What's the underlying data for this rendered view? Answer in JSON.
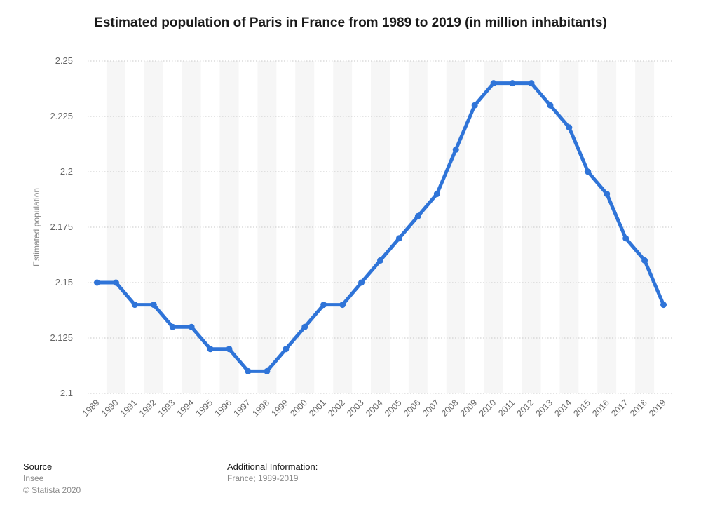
{
  "chart_data": {
    "type": "line",
    "title": "Estimated population of Paris in France from 1989 to 2019 (in million inhabitants)",
    "ylabel": "Estimated population",
    "xlabel": "",
    "ylim": [
      2.1,
      2.25
    ],
    "yticks": [
      "2.1",
      "2.125",
      "2.15",
      "2.175",
      "2.2",
      "2.225",
      "2.25"
    ],
    "grid": "horizontal dotted",
    "categories": [
      "1989",
      "1990",
      "1991",
      "1992",
      "1993",
      "1994",
      "1995",
      "1996",
      "1997",
      "1998",
      "1999",
      "2000",
      "2001",
      "2002",
      "2003",
      "2004",
      "2005",
      "2006",
      "2007",
      "2008",
      "2009",
      "2010",
      "2011",
      "2012",
      "2013",
      "2014",
      "2015",
      "2016",
      "2017",
      "2018",
      "2019"
    ],
    "series": [
      {
        "values": [
          2.15,
          2.15,
          2.14,
          2.14,
          2.13,
          2.13,
          2.12,
          2.12,
          2.11,
          2.11,
          2.12,
          2.13,
          2.14,
          2.14,
          2.15,
          2.16,
          2.17,
          2.18,
          2.19,
          2.21,
          2.23,
          2.24,
          2.24,
          2.24,
          2.23,
          2.22,
          2.2,
          2.19,
          2.17,
          2.16,
          2.14
        ],
        "color": "#2f74d8"
      }
    ]
  },
  "footer": {
    "source_heading": "Source",
    "source_name": "Insee",
    "copyright": "© Statista 2020",
    "info_heading": "Additional Information:",
    "info_text": "France; 1989-2019"
  }
}
